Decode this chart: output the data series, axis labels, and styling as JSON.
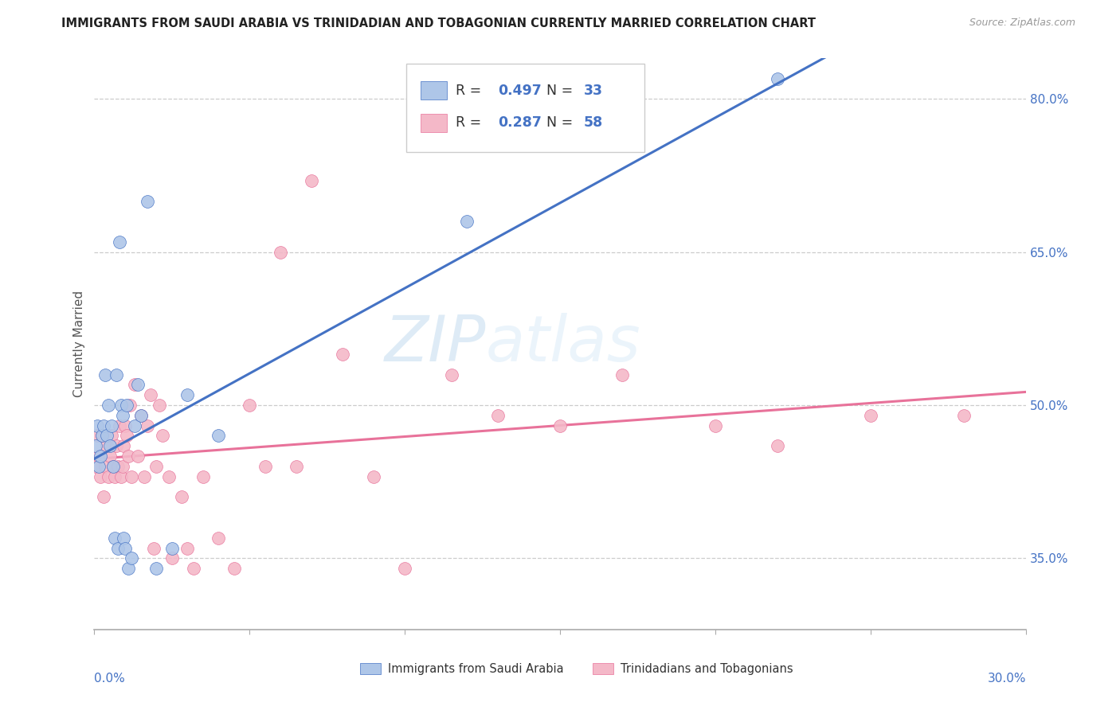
{
  "title": "IMMIGRANTS FROM SAUDI ARABIA VS TRINIDADIAN AND TOBAGONIAN CURRENTLY MARRIED CORRELATION CHART",
  "source": "Source: ZipAtlas.com",
  "ylabel": "Currently Married",
  "xmin": 0.0,
  "xmax": 30.0,
  "ymin": 28.0,
  "ymax": 84.0,
  "yticks": [
    35.0,
    50.0,
    65.0,
    80.0
  ],
  "watermark": "ZIPatlas",
  "legend_r1": "0.497",
  "legend_n1": "33",
  "legend_r2": "0.287",
  "legend_n2": "58",
  "color_blue": "#aec6e8",
  "color_pink": "#f4b8c8",
  "color_blue_line": "#4472c4",
  "color_pink_line": "#e8729a",
  "color_blue_text": "#4472c4",
  "saudi_x": [
    0.05,
    0.1,
    0.15,
    0.2,
    0.25,
    0.3,
    0.35,
    0.4,
    0.45,
    0.5,
    0.55,
    0.6,
    0.65,
    0.7,
    0.75,
    0.8,
    0.85,
    0.9,
    0.95,
    1.0,
    1.05,
    1.1,
    1.2,
    1.3,
    1.4,
    1.5,
    1.7,
    2.0,
    2.5,
    3.0,
    4.0,
    12.0,
    22.0
  ],
  "saudi_y": [
    46.0,
    48.0,
    44.0,
    45.0,
    47.0,
    48.0,
    53.0,
    47.0,
    50.0,
    46.0,
    48.0,
    44.0,
    37.0,
    53.0,
    36.0,
    66.0,
    50.0,
    49.0,
    37.0,
    36.0,
    50.0,
    34.0,
    35.0,
    48.0,
    52.0,
    49.0,
    70.0,
    34.0,
    36.0,
    51.0,
    47.0,
    68.0,
    82.0
  ],
  "trini_x": [
    0.05,
    0.1,
    0.15,
    0.2,
    0.25,
    0.3,
    0.35,
    0.4,
    0.45,
    0.5,
    0.55,
    0.6,
    0.65,
    0.7,
    0.75,
    0.8,
    0.85,
    0.9,
    0.95,
    1.0,
    1.05,
    1.1,
    1.15,
    1.2,
    1.3,
    1.4,
    1.5,
    1.6,
    1.7,
    1.8,
    1.9,
    2.0,
    2.1,
    2.2,
    2.4,
    2.5,
    2.8,
    3.0,
    3.2,
    3.5,
    4.0,
    4.5,
    5.0,
    5.5,
    6.0,
    6.5,
    7.0,
    8.0,
    9.0,
    10.0,
    11.5,
    13.0,
    15.0,
    17.0,
    20.0,
    22.0,
    25.0,
    28.0
  ],
  "trini_y": [
    44.0,
    47.0,
    45.0,
    43.0,
    47.0,
    41.0,
    44.0,
    46.0,
    43.0,
    45.0,
    47.0,
    44.0,
    43.0,
    46.0,
    44.0,
    48.0,
    43.0,
    44.0,
    46.0,
    48.0,
    47.0,
    45.0,
    50.0,
    43.0,
    52.0,
    45.0,
    49.0,
    43.0,
    48.0,
    51.0,
    36.0,
    44.0,
    50.0,
    47.0,
    43.0,
    35.0,
    41.0,
    36.0,
    34.0,
    43.0,
    37.0,
    34.0,
    50.0,
    44.0,
    65.0,
    44.0,
    72.0,
    55.0,
    43.0,
    34.0,
    53.0,
    49.0,
    48.0,
    53.0,
    48.0,
    46.0,
    49.0,
    49.0
  ]
}
